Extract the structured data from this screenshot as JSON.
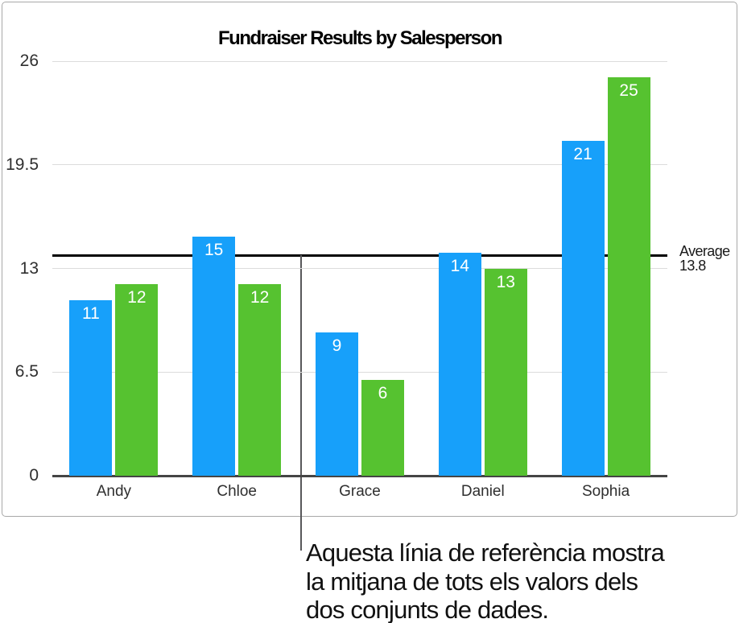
{
  "chart_data": {
    "type": "bar",
    "title": "Fundraiser Results by Salesperson",
    "categories": [
      "Andy",
      "Chloe",
      "Grace",
      "Daniel",
      "Sophia"
    ],
    "series": [
      {
        "name": "series-blue",
        "color": "#17a0fa",
        "values": [
          11,
          15,
          9,
          14,
          21
        ]
      },
      {
        "name": "series-green",
        "color": "#56c230",
        "values": [
          12,
          12,
          6,
          13,
          25
        ]
      }
    ],
    "ylim": [
      0,
      26
    ],
    "yticks": [
      "26",
      "19.5",
      "13",
      "6.5",
      "0"
    ],
    "grid": true,
    "reference_line": {
      "value": 13.8,
      "label_line1": "Average",
      "label_line2": "13.8"
    }
  },
  "caption": {
    "lines": [
      "Aquesta línia de referència mostra",
      "la mitjana de tots els valors dels",
      "dos conjunts de dades."
    ]
  }
}
